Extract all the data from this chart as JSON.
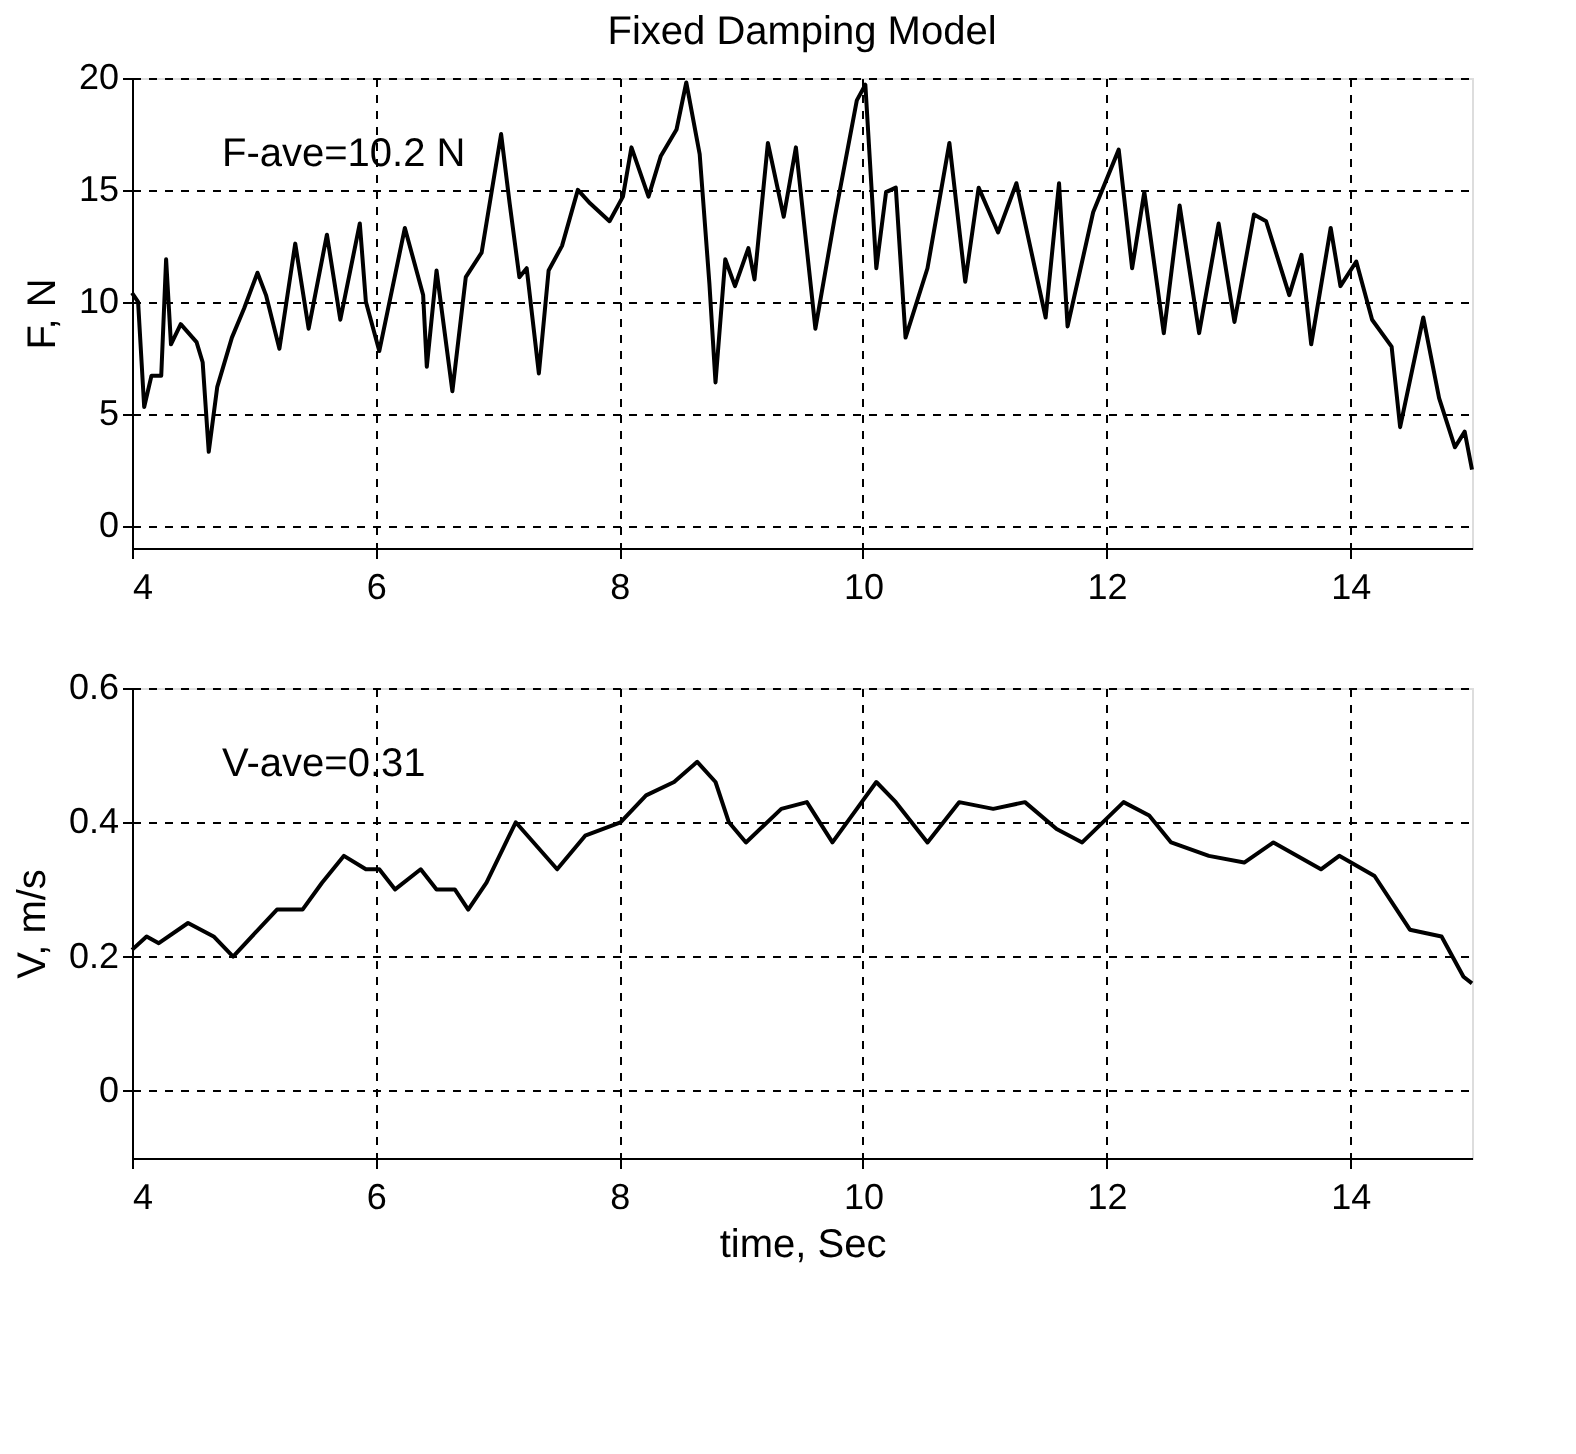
{
  "chart_data": [
    {
      "type": "line",
      "title": "Fixed Damping Model",
      "ylabel": "F, N",
      "annotations": [
        "F-ave=10.2 N"
      ],
      "x": [
        4.0,
        4.05,
        4.1,
        4.16,
        4.24,
        4.28,
        4.32,
        4.4,
        4.53,
        4.58,
        4.63,
        4.7,
        4.82,
        4.92,
        5.03,
        5.1,
        5.21,
        5.34,
        5.45,
        5.6,
        5.71,
        5.87,
        5.92,
        6.03,
        6.24,
        6.39,
        6.42,
        6.5,
        6.63,
        6.74,
        6.87,
        7.03,
        7.1,
        7.18,
        7.24,
        7.34,
        7.42,
        7.53,
        7.66,
        7.76,
        7.92,
        8.03,
        8.1,
        8.24,
        8.34,
        8.47,
        8.55,
        8.66,
        8.74,
        8.79,
        8.87,
        8.95,
        9.06,
        9.11,
        9.22,
        9.35,
        9.45,
        9.61,
        9.77,
        9.95,
        10.02,
        10.11,
        10.19,
        10.27,
        10.35,
        10.53,
        10.71,
        10.84,
        10.95,
        11.11,
        11.26,
        11.5,
        11.61,
        11.68,
        11.89,
        12.1,
        12.21,
        12.31,
        12.47,
        12.6,
        12.76,
        12.92,
        13.05,
        13.21,
        13.31,
        13.5,
        13.6,
        13.68,
        13.84,
        13.92,
        14.05,
        14.18,
        14.34,
        14.41,
        14.6,
        14.73,
        14.86,
        14.94,
        15.0
      ],
      "series": [
        {
          "color": "#000000",
          "values": [
            10.4,
            10.0,
            5.3,
            6.7,
            6.7,
            11.9,
            8.1,
            9.0,
            8.2,
            7.3,
            3.3,
            6.2,
            8.4,
            9.7,
            11.3,
            10.3,
            7.9,
            12.6,
            8.8,
            13.0,
            9.2,
            13.5,
            10.0,
            7.8,
            13.3,
            10.3,
            7.1,
            11.4,
            6.0,
            11.1,
            12.2,
            17.5,
            14.4,
            11.1,
            11.5,
            6.8,
            11.4,
            12.5,
            15.0,
            14.4,
            13.6,
            14.7,
            16.9,
            14.7,
            16.5,
            17.7,
            19.8,
            16.6,
            10.8,
            6.4,
            11.9,
            10.7,
            12.4,
            11.0,
            17.1,
            13.8,
            16.9,
            8.8,
            13.8,
            19.0,
            19.7,
            11.5,
            14.9,
            15.1,
            8.4,
            11.5,
            17.1,
            10.9,
            15.1,
            13.1,
            15.3,
            9.3,
            15.3,
            8.9,
            14.0,
            16.8,
            11.5,
            14.9,
            8.6,
            14.3,
            8.6,
            13.5,
            9.1,
            13.9,
            13.6,
            10.3,
            12.1,
            8.1,
            13.3,
            10.7,
            11.8,
            9.2,
            8.0,
            4.4,
            9.3,
            5.7,
            3.5,
            4.2,
            2.5
          ]
        }
      ],
      "xlim": [
        4,
        15
      ],
      "ylim": [
        -1,
        20
      ],
      "xticks": [
        4,
        6,
        8,
        10,
        12,
        14
      ],
      "yticks": [
        0,
        5,
        10,
        15,
        20
      ],
      "grid": true,
      "line_style": "solid"
    },
    {
      "type": "line",
      "xlabel": "time, Sec",
      "ylabel": "V, m/s",
      "annotations": [
        "V-ave=0.31"
      ],
      "x": [
        4.0,
        4.12,
        4.22,
        4.46,
        4.67,
        4.83,
        5.19,
        5.4,
        5.56,
        5.74,
        5.92,
        6.03,
        6.16,
        6.37,
        6.5,
        6.65,
        6.76,
        6.91,
        7.15,
        7.49,
        7.72,
        8.01,
        8.22,
        8.45,
        8.64,
        8.79,
        8.9,
        9.04,
        9.33,
        9.54,
        9.75,
        9.95,
        10.11,
        10.27,
        10.53,
        10.79,
        11.07,
        11.33,
        11.59,
        11.8,
        12.14,
        12.35,
        12.53,
        12.84,
        13.13,
        13.37,
        13.76,
        13.91,
        14.2,
        14.49,
        14.75,
        14.93,
        15.0
      ],
      "series": [
        {
          "color": "#000000",
          "values": [
            0.21,
            0.23,
            0.22,
            0.25,
            0.23,
            0.2,
            0.27,
            0.27,
            0.31,
            0.35,
            0.33,
            0.33,
            0.3,
            0.33,
            0.3,
            0.3,
            0.27,
            0.31,
            0.4,
            0.33,
            0.38,
            0.4,
            0.44,
            0.46,
            0.49,
            0.46,
            0.4,
            0.37,
            0.42,
            0.43,
            0.37,
            0.42,
            0.46,
            0.43,
            0.37,
            0.43,
            0.42,
            0.43,
            0.39,
            0.37,
            0.43,
            0.41,
            0.37,
            0.35,
            0.34,
            0.37,
            0.33,
            0.35,
            0.32,
            0.24,
            0.23,
            0.17,
            0.16
          ]
        }
      ],
      "xlim": [
        4,
        15
      ],
      "ylim": [
        -0.1,
        0.6
      ],
      "xticks": [
        4,
        6,
        8,
        10,
        12,
        14
      ],
      "yticks": [
        0,
        0.2,
        0.4,
        0.6
      ],
      "grid": true,
      "line_style": "solid"
    }
  ]
}
